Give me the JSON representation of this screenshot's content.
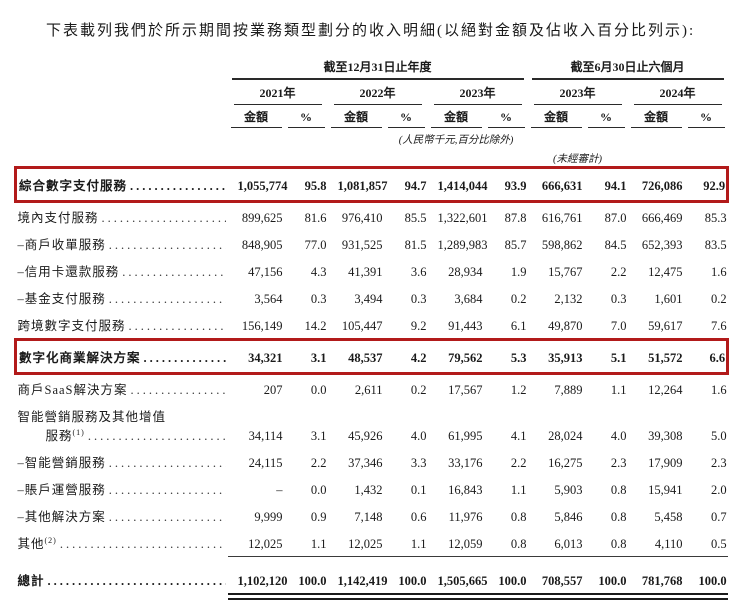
{
  "intro": "下表載列我們於所示期間按業務類型劃分的收入明細(以絕對金額及佔收入百分比列示):",
  "table": {
    "accent_color": "#b21a1a",
    "col_groups": [
      {
        "label": "截至12月31日止年度",
        "years": [
          "2021年",
          "2022年",
          "2023年"
        ]
      },
      {
        "label": "截至6月30日止六個月",
        "years": [
          "2023年",
          "2024年"
        ]
      }
    ],
    "amount_header": "金額",
    "pct_header": "%",
    "unit_note": "(人民幣千元,百分比除外)",
    "unaudited_note": "(未經審計)",
    "rows": [
      {
        "label": "綜合數字支付服務",
        "style": "boxed bold",
        "values": [
          "1,055,774",
          "95.8",
          "1,081,857",
          "94.7",
          "1,414,044",
          "93.9",
          "666,631",
          "94.1",
          "726,086",
          "92.9"
        ]
      },
      {
        "label": "境內支付服務",
        "style": "",
        "values": [
          "899,625",
          "81.6",
          "976,410",
          "85.5",
          "1,322,601",
          "87.8",
          "616,761",
          "87.0",
          "666,469",
          "85.3"
        ]
      },
      {
        "label": "–商戶收單服務",
        "style": "",
        "values": [
          "848,905",
          "77.0",
          "931,525",
          "81.5",
          "1,289,983",
          "85.7",
          "598,862",
          "84.5",
          "652,393",
          "83.5"
        ]
      },
      {
        "label": "–信用卡還款服務",
        "style": "",
        "values": [
          "47,156",
          "4.3",
          "41,391",
          "3.6",
          "28,934",
          "1.9",
          "15,767",
          "2.2",
          "12,475",
          "1.6"
        ]
      },
      {
        "label": "–基金支付服務",
        "style": "",
        "values": [
          "3,564",
          "0.3",
          "3,494",
          "0.3",
          "3,684",
          "0.2",
          "2,132",
          "0.3",
          "1,601",
          "0.2"
        ]
      },
      {
        "label": "跨境數字支付服務",
        "style": "",
        "values": [
          "156,149",
          "14.2",
          "105,447",
          "9.2",
          "91,443",
          "6.1",
          "49,870",
          "7.0",
          "59,617",
          "7.6"
        ]
      },
      {
        "label": "數字化商業解決方案",
        "style": "boxed bold",
        "values": [
          "34,321",
          "3.1",
          "48,537",
          "4.2",
          "79,562",
          "5.3",
          "35,913",
          "5.1",
          "51,572",
          "6.6"
        ]
      },
      {
        "label": "商戶SaaS解決方案",
        "style": "",
        "values": [
          "207",
          "0.0",
          "2,611",
          "0.2",
          "17,567",
          "1.2",
          "7,889",
          "1.1",
          "12,264",
          "1.6"
        ]
      },
      {
        "label": "智能營銷服務及其他增值",
        "label2": "服務",
        "sup": "(1)",
        "style": "twoline",
        "values": [
          "34,114",
          "3.1",
          "45,926",
          "4.0",
          "61,995",
          "4.1",
          "28,024",
          "4.0",
          "39,308",
          "5.0"
        ]
      },
      {
        "label": "–智能營銷服務",
        "style": "",
        "values": [
          "24,115",
          "2.2",
          "37,346",
          "3.3",
          "33,176",
          "2.2",
          "16,275",
          "2.3",
          "17,909",
          "2.3"
        ]
      },
      {
        "label": "–賬戶運營服務",
        "style": "",
        "values": [
          "–",
          "0.0",
          "1,432",
          "0.1",
          "16,843",
          "1.1",
          "5,903",
          "0.8",
          "15,941",
          "2.0"
        ]
      },
      {
        "label": "–其他解決方案",
        "style": "",
        "values": [
          "9,999",
          "0.9",
          "7,148",
          "0.6",
          "11,976",
          "0.8",
          "5,846",
          "0.8",
          "5,458",
          "0.7"
        ]
      },
      {
        "label": "其他",
        "sup": "(2)",
        "style": "rule-single",
        "values": [
          "12,025",
          "1.1",
          "12,025",
          "1.1",
          "12,059",
          "0.8",
          "6,013",
          "0.8",
          "4,110",
          "0.5"
        ]
      },
      {
        "label": "總計",
        "style": "bold total rule-double",
        "values": [
          "1,102,120",
          "100.0",
          "1,142,419",
          "100.0",
          "1,505,665",
          "100.0",
          "708,557",
          "100.0",
          "781,768",
          "100.0"
        ]
      }
    ]
  }
}
